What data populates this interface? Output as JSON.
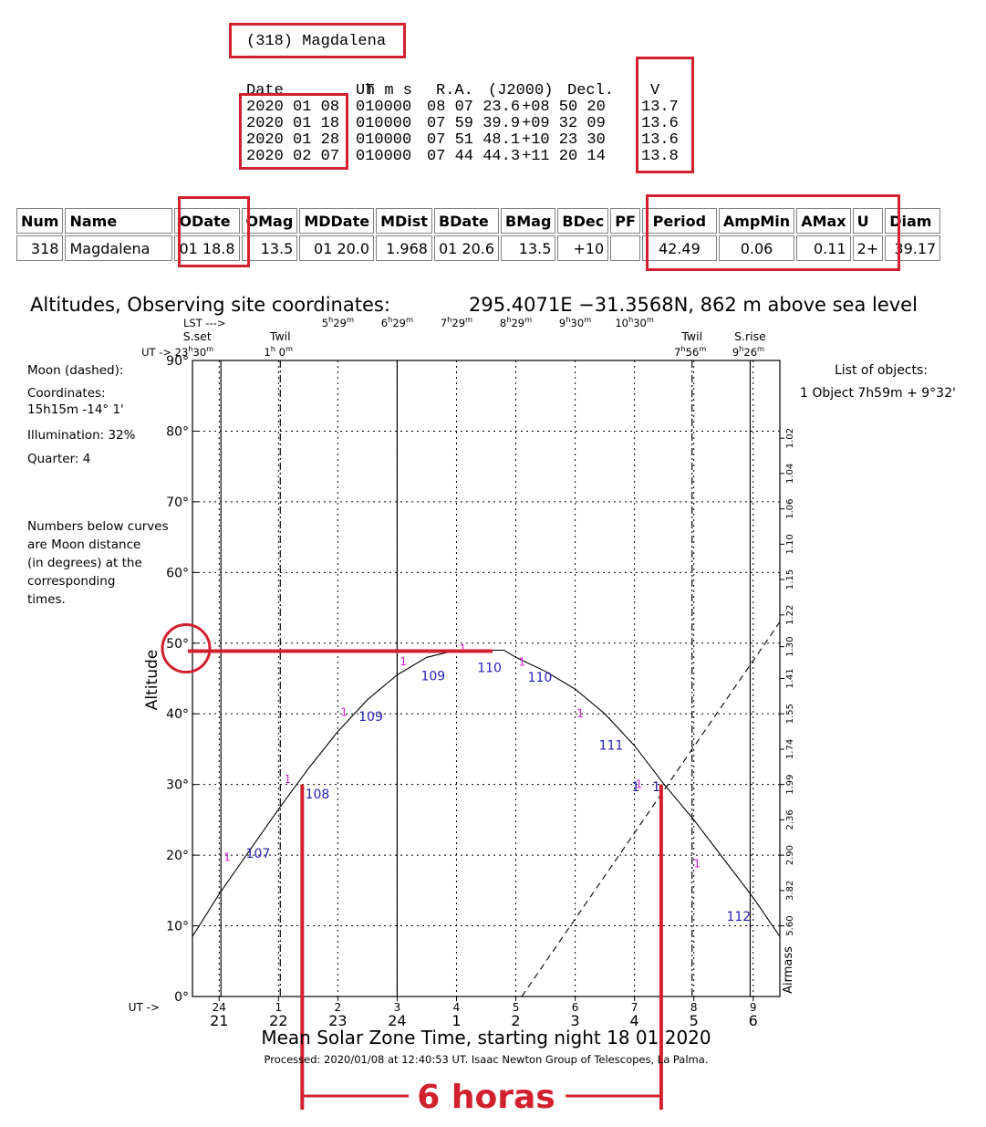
{
  "ephemeris": {
    "title": "(318) Magdalena",
    "headers": {
      "date": "Date",
      "ut": "UT",
      "ra": "R.A.",
      "epoch": "(J2000)",
      "decl": "Decl.",
      "v": "V"
    },
    "ut_units": "h m s",
    "rows": [
      {
        "date": "2020 01 08",
        "ut": "010000",
        "ra": "08 07 23.6",
        "decl": "+08 50 20",
        "v": "13.7"
      },
      {
        "date": "2020 01 18",
        "ut": "010000",
        "ra": "07 59 39.9",
        "decl": "+09 32 09",
        "v": "13.6"
      },
      {
        "date": "2020 01 28",
        "ut": "010000",
        "ra": "07 51 48.1",
        "decl": "+10 23 30",
        "v": "13.6"
      },
      {
        "date": "2020 02 07",
        "ut": "010000",
        "ra": "07 44 44.3",
        "decl": "+11 20 14",
        "v": "13.8"
      }
    ]
  },
  "info_table": {
    "headers": [
      "Num",
      "Name",
      "ODate",
      "OMag",
      "MDDate",
      "MDist",
      "BDate",
      "BMag",
      "BDec",
      "PF",
      "Period",
      "AmpMin",
      "AMax",
      "U",
      "Diam"
    ],
    "row": [
      "318",
      "Magdalena",
      "01 18.8",
      "13.5",
      "01 20.0",
      "1.968",
      "01 20.6",
      "13.5",
      "+10",
      "",
      "42.49",
      "0.06",
      "0.11",
      "2+",
      "39.17"
    ]
  },
  "chart_data": {
    "type": "line",
    "title": "Altitudes, Observing site coordinates:",
    "site": "295.4071E −31.3568N,  862 m above sea level",
    "xlabel": "Mean Solar Zone Time, starting night 18 01 2020",
    "ylabel": "Altitude",
    "y2label": "Airmass",
    "processed": "Processed: 2020/01/08 at 12:40:53 UT. Isaac  Newton Group of Telescopes, La Palma.",
    "ylim": [
      0,
      90
    ],
    "xlim": [
      20.55,
      30.45
    ],
    "y_ticks": [
      0,
      10,
      20,
      30,
      40,
      50,
      60,
      70,
      80,
      90
    ],
    "y_tick_labels": [
      "0°",
      "10°",
      "20°",
      "30°",
      "40°",
      "50°",
      "60°",
      "70°",
      "80°",
      "90°"
    ],
    "airmass_ticks": [
      {
        "label": "1.02",
        "alt": 79
      },
      {
        "label": "1.04",
        "alt": 74
      },
      {
        "label": "1.06",
        "alt": 69
      },
      {
        "label": "1.10",
        "alt": 64
      },
      {
        "label": "1.15",
        "alt": 59
      },
      {
        "label": "1.22",
        "alt": 54
      },
      {
        "label": "1.30",
        "alt": 49.5
      },
      {
        "label": "1.41",
        "alt": 45
      },
      {
        "label": "1.55",
        "alt": 40
      },
      {
        "label": "1.74",
        "alt": 35
      },
      {
        "label": "1.99",
        "alt": 30
      },
      {
        "label": "2.36",
        "alt": 25
      },
      {
        "label": "2.90",
        "alt": 20
      },
      {
        "label": "3.82",
        "alt": 15
      },
      {
        "label": "5.60",
        "alt": 10
      }
    ],
    "x_ticks_local": [
      {
        "x": 21,
        "label": "21"
      },
      {
        "x": 22,
        "label": "22"
      },
      {
        "x": 23,
        "label": "23"
      },
      {
        "x": 24,
        "label": "24"
      },
      {
        "x": 25,
        "label": "1"
      },
      {
        "x": 26,
        "label": "2"
      },
      {
        "x": 27,
        "label": "3"
      },
      {
        "x": 28,
        "label": "4"
      },
      {
        "x": 29,
        "label": "5"
      },
      {
        "x": 30,
        "label": "6"
      }
    ],
    "ut_prefix": "UT ->",
    "x_ticks_ut": [
      {
        "x": 21,
        "label": "24"
      },
      {
        "x": 22,
        "label": "1"
      },
      {
        "x": 23,
        "label": "2"
      },
      {
        "x": 24,
        "label": "3"
      },
      {
        "x": 25,
        "label": "4"
      },
      {
        "x": 26,
        "label": "5"
      },
      {
        "x": 27,
        "label": "6"
      },
      {
        "x": 28,
        "label": "7"
      },
      {
        "x": 29,
        "label": "8"
      },
      {
        "x": 30,
        "label": "9"
      }
    ],
    "lst_label": "LST --->",
    "lst_ticks": [
      {
        "x": 23,
        "label": "5h29m"
      },
      {
        "x": 24,
        "label": "6h29m"
      },
      {
        "x": 25,
        "label": "7h29m"
      },
      {
        "x": 26,
        "label": "8h29m"
      },
      {
        "x": 27,
        "label": "9h30m"
      },
      {
        "x": 28,
        "label": "10h30m"
      }
    ],
    "events": [
      {
        "x": 21.03,
        "label": "S.set",
        "sub": "UT -> 23h30m",
        "style": "solid"
      },
      {
        "x": 22.03,
        "label": "Twil",
        "sub": "1h 0m",
        "style": "dashdot"
      },
      {
        "x": 24.0,
        "label": "",
        "sub": "",
        "style": "solid"
      },
      {
        "x": 28.97,
        "label": "Twil",
        "sub": "7h56m",
        "style": "dashdot"
      },
      {
        "x": 29.95,
        "label": "S.rise",
        "sub": "9h26m",
        "style": "solid"
      }
    ],
    "series": [
      {
        "name": "object",
        "style": "solid",
        "points": [
          [
            20.55,
            8.5
          ],
          [
            21.0,
            14.5
          ],
          [
            21.5,
            20.5
          ],
          [
            22.0,
            26.5
          ],
          [
            22.5,
            32.2
          ],
          [
            23.0,
            37.5
          ],
          [
            23.5,
            42.0
          ],
          [
            24.0,
            45.5
          ],
          [
            24.5,
            48.0
          ],
          [
            25.0,
            49.0
          ],
          [
            25.5,
            49.0
          ],
          [
            25.8,
            49.0
          ],
          [
            26.0,
            48.0
          ],
          [
            26.5,
            46.0
          ],
          [
            27.0,
            43.5
          ],
          [
            27.5,
            40.0
          ],
          [
            28.0,
            35.5
          ],
          [
            28.5,
            30.0
          ],
          [
            29.0,
            25.0
          ],
          [
            29.5,
            19.5
          ],
          [
            30.0,
            14.0
          ],
          [
            30.45,
            8.5
          ]
        ]
      },
      {
        "name": "moon",
        "style": "dashed",
        "points": [
          [
            26.1,
            0
          ],
          [
            30.45,
            53
          ]
        ]
      }
    ],
    "moon_distance_labels": [
      {
        "x": 21.45,
        "y": 20.4,
        "label": "107"
      },
      {
        "x": 22.45,
        "y": 28.8,
        "label": "108"
      },
      {
        "x": 23.35,
        "y": 39.8,
        "label": "109"
      },
      {
        "x": 24.4,
        "y": 45.5,
        "label": "109"
      },
      {
        "x": 25.35,
        "y": 46.7,
        "label": "110"
      },
      {
        "x": 26.2,
        "y": 45.3,
        "label": "110"
      },
      {
        "x": 27.4,
        "y": 35.7,
        "label": "111"
      },
      {
        "x": 27.95,
        "y": 29.8,
        "label": "1"
      },
      {
        "x": 28.3,
        "y": 29.8,
        "label": "1"
      },
      {
        "x": 29.55,
        "y": 11.5,
        "label": "112"
      }
    ],
    "magenta_marks": [
      {
        "x": 21.03,
        "y": 19.7
      },
      {
        "x": 22.05,
        "y": 30.7
      },
      {
        "x": 23.0,
        "y": 40.2
      },
      {
        "x": 24.0,
        "y": 47.4
      },
      {
        "x": 25.0,
        "y": 49.2
      },
      {
        "x": 26.0,
        "y": 47.3
      },
      {
        "x": 26.98,
        "y": 40.0
      },
      {
        "x": 27.97,
        "y": 30.0
      },
      {
        "x": 28.95,
        "y": 18.8
      }
    ],
    "moon_info": {
      "title": "Moon (dashed):",
      "coords_label": "Coordinates:",
      "coords": "15h15m  -14° 1'",
      "illumination": "Illumination:  32%",
      "quarter": "Quarter: 4",
      "note": [
        "Numbers below curves",
        "are Moon distance",
        "(in degrees) at the",
        "corresponding",
        "times."
      ]
    },
    "objects_list": {
      "title": "List of objects:",
      "item": "1 Object  7h59m + 9°32'"
    },
    "annotation": {
      "label": "6 horas",
      "x_start": 22.4,
      "x_end": 28.45,
      "alt_line": 49
    }
  },
  "colors": {
    "red": "#d2202e",
    "blue": "#1f1fb4",
    "magenta": "#d61fd6"
  }
}
